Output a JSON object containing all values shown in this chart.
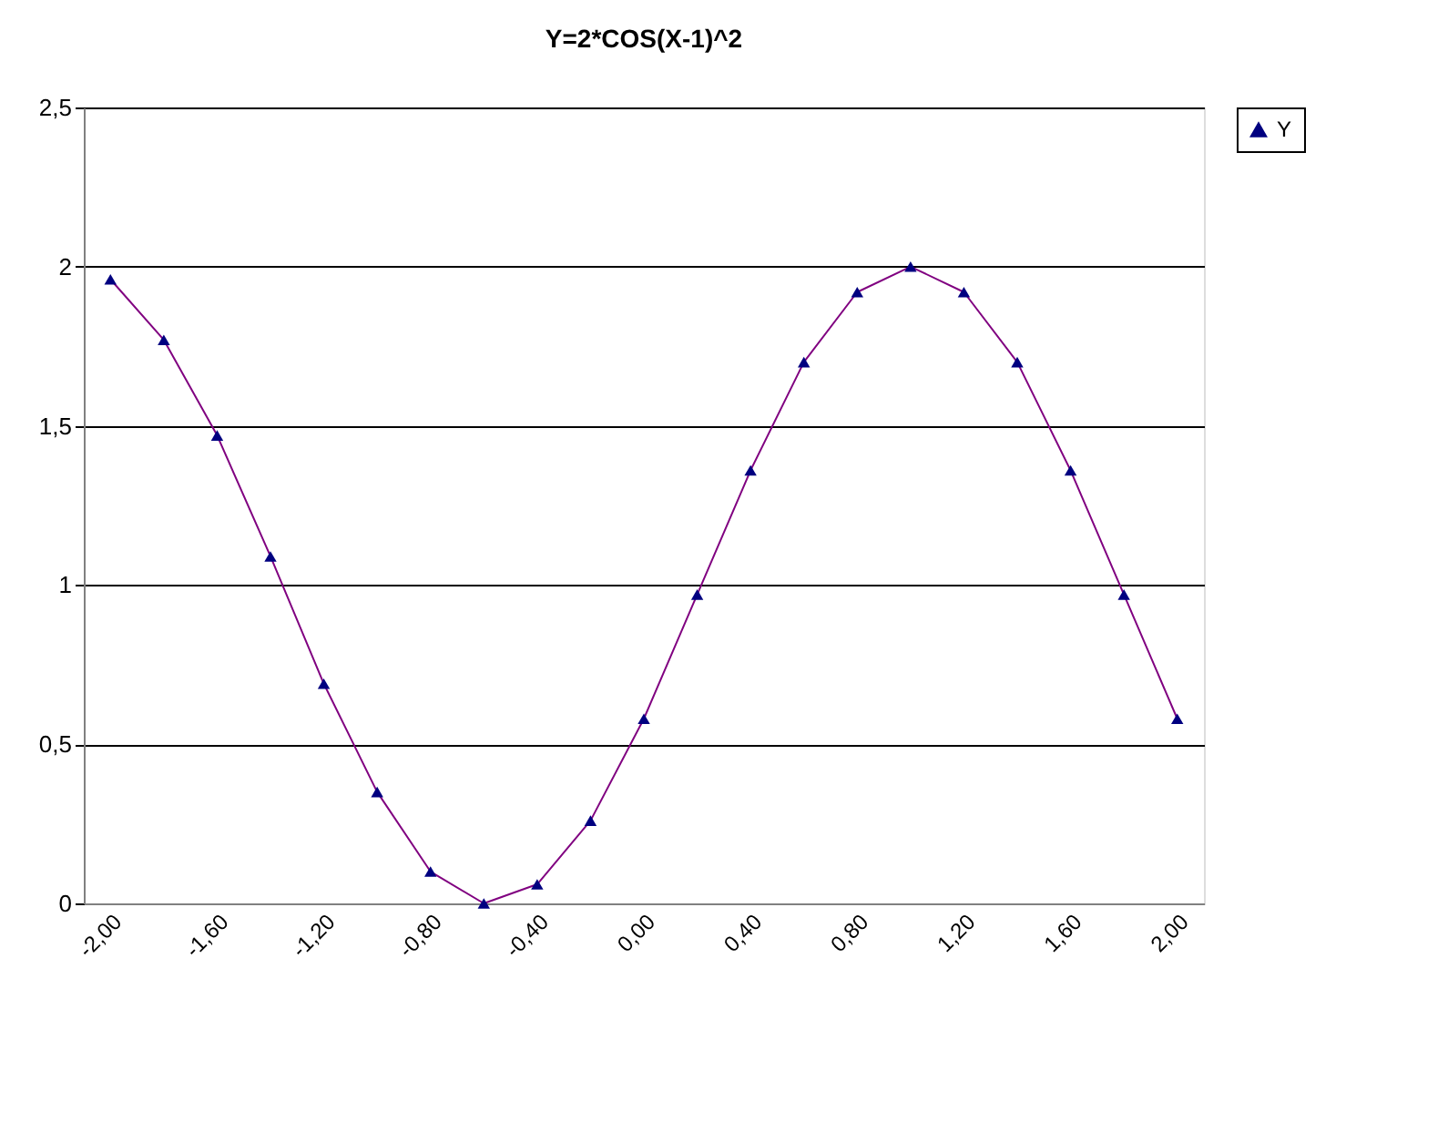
{
  "chart_data": {
    "type": "line",
    "title": "Y=2*COS(X-1)^2",
    "categories": [
      "-2,00",
      null,
      "-1,60",
      null,
      "-1,20",
      null,
      "-0,80",
      null,
      "-0,40",
      null,
      "0,00",
      null,
      "0,40",
      null,
      "0,80",
      null,
      "1,20",
      null,
      "1,60",
      null,
      "2,00"
    ],
    "series": [
      {
        "name": "Y",
        "color": "#000080",
        "values": [
          1.96,
          1.77,
          1.47,
          1.09,
          0.69,
          0.35,
          0.1,
          0.0,
          0.06,
          0.26,
          0.58,
          0.97,
          1.36,
          1.7,
          1.92,
          2.0,
          1.92,
          1.7,
          1.36,
          0.97,
          0.58
        ]
      }
    ],
    "ylim": [
      0,
      2.5
    ],
    "yticks": [
      0,
      {
        "value": 0.5,
        "label": "0,5"
      },
      1,
      {
        "value": 1.5,
        "label": "1,5"
      },
      2,
      {
        "value": 2.5,
        "label": "2,5"
      }
    ],
    "grid": "y",
    "legend": "right",
    "marker": "triangle",
    "line_style": "solid"
  }
}
